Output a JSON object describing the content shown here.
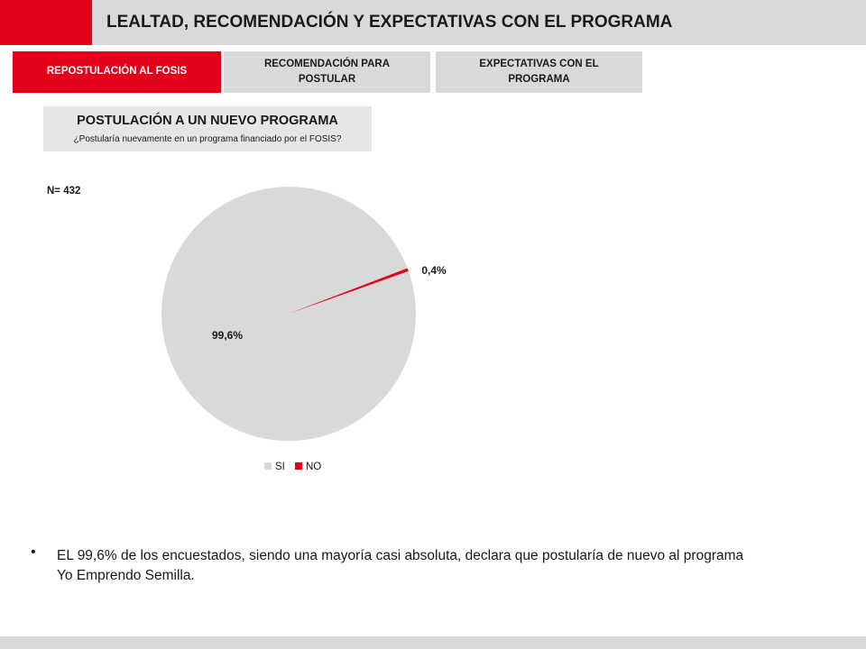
{
  "header": {
    "title": "LEALTAD, RECOMENDACIÓN Y EXPECTATIVAS CON EL PROGRAMA"
  },
  "tabs": [
    {
      "label": "REPOSTULACIÓN AL FOSIS",
      "active": true
    },
    {
      "label": "RECOMENDACIÓN PARA POSTULAR",
      "active": false
    },
    {
      "label": "EXPECTATIVAS CON EL PROGRAMA",
      "active": false
    }
  ],
  "section": {
    "title": "POSTULACIÓN A UN NUEVO PROGRAMA",
    "question": "¿Postularía nuevamente en un programa financiado por el FOSIS?"
  },
  "sample": {
    "label": "N= 432"
  },
  "chart_data": {
    "type": "pie",
    "categories": [
      "SI",
      "NO"
    ],
    "values": [
      99.6,
      0.4
    ],
    "data_labels": [
      "99,6%",
      "0,4%"
    ],
    "colors": [
      "#d9d9d9",
      "#e3001b"
    ],
    "legend": "bottom",
    "title": ""
  },
  "summary": {
    "bullet": "•",
    "text": "EL 99,6% de los encuestados, siendo una mayoría casi absoluta, declara que postularía de nuevo al programa Yo Emprendo Semilla."
  },
  "colors": {
    "accent": "#e3001b",
    "panel": "#d9d9d9"
  }
}
